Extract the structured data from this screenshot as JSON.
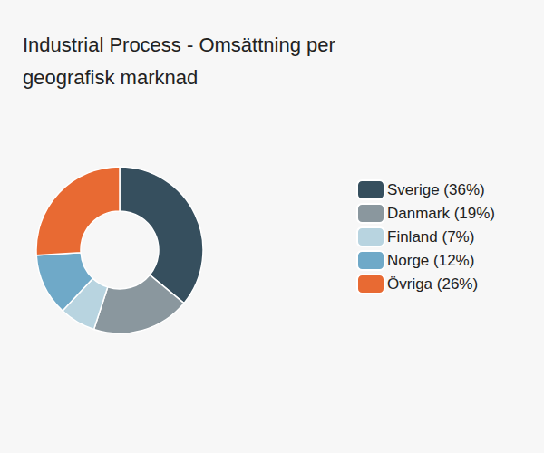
{
  "chart_data": {
    "type": "pie",
    "title": "Industrial Process - Omsättning per geografisk marknad",
    "categories": [
      "Sverige (36%)",
      "Danmark (19%)",
      "Finland (7%)",
      "Norge (12%)",
      "Övriga (26%)"
    ],
    "values": [
      36,
      19,
      7,
      12,
      26
    ],
    "colors": [
      "#364f5e",
      "#8a979e",
      "#b8d4e0",
      "#6fa9c8",
      "#e86a33"
    ],
    "legend": "right"
  }
}
